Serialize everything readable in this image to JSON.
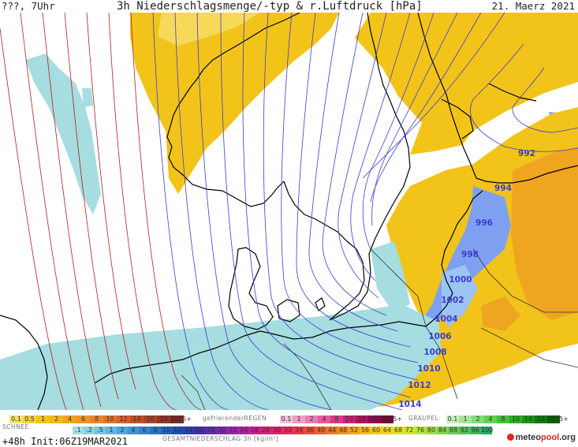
{
  "header": {
    "left": "???, 7Uhr",
    "title": "3h Niederschlagsmenge/-typ & r.Luftdruck [hPa]",
    "date": "21. Maerz 2021"
  },
  "map": {
    "isobar_labels": [
      "992",
      "994",
      "996",
      "998",
      "1000",
      "1002",
      "1004",
      "1006",
      "1008",
      "1010",
      "1012",
      "1014"
    ],
    "colors": {
      "rain": "#f2c41a",
      "rain_heavy": "#f0a520",
      "snow": "#a6dde0",
      "snow_mid": "#7fa0f0",
      "isobar": "#3a3cd0",
      "isobar_high": "#b02020",
      "coast": "#000000"
    }
  },
  "legend": {
    "rain_values": [
      "0.1",
      "0.5",
      "1",
      "2",
      "4",
      "6",
      "8",
      "10",
      "12",
      "14",
      "16",
      "18",
      "2025+"
    ],
    "freezing_rain_label": "gefrierenderREGEN",
    "freezing_values": [
      "0.1",
      "1",
      "2",
      "4",
      "8",
      "10",
      "14",
      "16",
      "2025+"
    ],
    "graupel_label": "GRAUPEL",
    "graupel_values": [
      "0.1",
      "1",
      "2",
      "4",
      "8",
      "10",
      "14",
      "16",
      "2025+"
    ],
    "snow_label": "SCHNEE",
    "total_values": [
      ".1",
      ".2",
      ".5",
      "1",
      "2",
      "4",
      "6",
      "8",
      "10",
      "12",
      "14",
      "16",
      "18",
      "20",
      "22",
      "24",
      "26",
      "28",
      "30",
      "32",
      "34",
      "36",
      "40",
      "44",
      "48",
      "52",
      "56",
      "60",
      "64",
      "68",
      "72",
      "76",
      "80",
      "84",
      "88",
      "92",
      "96",
      "100"
    ],
    "total_label": "GESAMTNIEDERSCHLAG 3h [kg/m²]"
  },
  "footer": {
    "init": "+48h  Init:06Z19MAR2021",
    "logo_a": "meteo",
    "logo_b": "pool",
    "logo_c": ".org"
  }
}
